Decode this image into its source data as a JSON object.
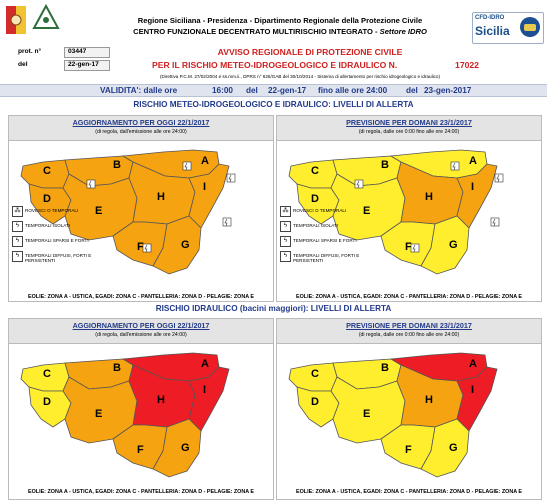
{
  "header": {
    "line1": "Regione Siciliana - Presidenza - Dipartimento Regionale della Protezione Civile",
    "line2_main": "CENTRO FUNZIONALE DECENTRATO MULTIRISCHIO INTEGRATO - ",
    "line2_italic": "Settore IDRO",
    "logo_right_top": "CFD-IDRO",
    "logo_right_name": "Sicilia"
  },
  "meta": {
    "prot_label": "prot. n°",
    "prot_value": "03447",
    "del_label": "del",
    "del_value": "22-gen-17",
    "avviso_line1": "AVVISO REGIONALE DI PROTEZIONE CIVILE",
    "avviso_line2": "PER IL RISCHIO METEO-IDROGEOLOGICO E IDRAULICO N.",
    "avviso_number": "17022",
    "directive": "(Direttiva P.C.M. 27/02/2004 e ss.mm.ii., DPRS n° 626/GAB del 30/10/2014 - Sistema di allertamento per rischio idrogeologico e idraulico)"
  },
  "validity": {
    "label": "VALIDITA': dalle ore",
    "from_time": "16:00",
    "from_label": "del",
    "from_date": "22-gen-17",
    "to_label": "fino alle ore 24:00",
    "to_label2": "del",
    "to_date": "23-gen-2017"
  },
  "sections": {
    "meteo_title": "RISCHIO METEO-IDROGEOLOGICO E IDRAULICO: LIVELLI DI ALLERTA",
    "idraulico_title": "RISCHIO IDRAULICO (bacini maggiori): LIVELLI DI ALLERTA"
  },
  "panels": {
    "today_title": "AGGIORNAMENTO PER OGGI 22/1/2017",
    "today_sub": "(di regola, dall'emissione alle ore 24:00)",
    "tomorrow_title": "PREVISIONE PER DOMANI 23/1/2017",
    "tomorrow_sub": "(di regola, dalle ore 0:00 fino alle ore 24:00)",
    "footer": "EOLIE: ZONA A - USTICA, EGADI: ZONA C - PANTELLERIA: ZONA D - PELAGIE: ZONA E"
  },
  "legend": [
    {
      "icon": "rovesci-icon",
      "label": "ROVESCI O TEMPORALI"
    },
    {
      "icon": "temporali-isolati-icon",
      "label": "TEMPORALI ISOLATI"
    },
    {
      "icon": "temporali-sparsi-icon",
      "label": "TEMPORALI SPARSI E FORTI"
    },
    {
      "icon": "temporali-diffusi-icon",
      "label": "TEMPORALI DIFFUSI, FORTI E PERSISTENTI"
    }
  ],
  "zone_labels": [
    "A",
    "B",
    "C",
    "D",
    "E",
    "F",
    "G",
    "H",
    "I"
  ],
  "colors": {
    "yellow": "#ffee2e",
    "orange": "#f6a312",
    "red": "#ee1c24",
    "border_gray": "#555555",
    "title_blue": "#223a8a",
    "alert_red": "#cf1f1f"
  },
  "maps": {
    "meteo_today": {
      "A": "orange",
      "B": "orange",
      "C": "orange",
      "D": "orange",
      "E": "orange",
      "F": "orange",
      "G": "orange",
      "H": "orange",
      "I": "orange"
    },
    "meteo_tomorrow": {
      "A": "yellow",
      "B": "yellow",
      "C": "yellow",
      "D": "yellow",
      "E": "yellow",
      "F": "yellow",
      "G": "yellow",
      "H": "orange",
      "I": "orange"
    },
    "idro_today": {
      "A": "red",
      "B": "orange",
      "C": "yellow",
      "D": "yellow",
      "E": "orange",
      "F": "orange",
      "G": "orange",
      "H": "red",
      "I": "red"
    },
    "idro_tomorrow": {
      "A": "red",
      "B": "yellow",
      "C": "yellow",
      "D": "yellow",
      "E": "yellow",
      "F": "yellow",
      "G": "yellow",
      "H": "orange",
      "I": "red"
    }
  }
}
